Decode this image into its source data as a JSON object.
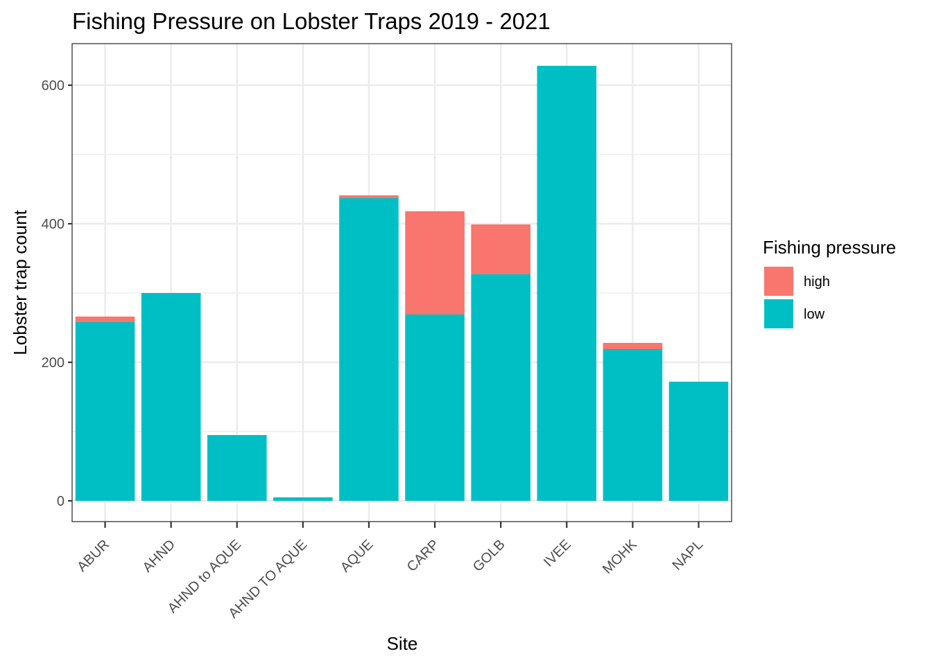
{
  "chart_data": {
    "type": "bar",
    "stacked": true,
    "title": "Fishing Pressure on Lobster Traps 2019 - 2021",
    "xlabel": "Site",
    "ylabel": "Lobster trap count",
    "ylim": [
      -30,
      660
    ],
    "y_ticks": [
      0,
      200,
      400,
      600
    ],
    "y_minor_ticks": [
      100,
      300,
      500
    ],
    "grid": true,
    "categories": [
      "ABUR",
      "AHND",
      "AHND to AQUE",
      "AHND TO AQUE",
      "AQUE",
      "CARP",
      "GOLB",
      "IVEE",
      "MOHK",
      "NAPL"
    ],
    "series": [
      {
        "name": "low",
        "color": "#00BFC4",
        "values": [
          258,
          300,
          95,
          5,
          437,
          269,
          327,
          628,
          219,
          172
        ]
      },
      {
        "name": "high",
        "color": "#F8766D",
        "values": [
          8,
          0,
          0,
          0,
          4,
          149,
          72,
          0,
          9,
          0
        ]
      }
    ],
    "legend": {
      "title": "Fishing pressure",
      "position": "right",
      "items": [
        {
          "label": "high",
          "color": "#F8766D"
        },
        {
          "label": "low",
          "color": "#00BFC4"
        }
      ]
    }
  }
}
